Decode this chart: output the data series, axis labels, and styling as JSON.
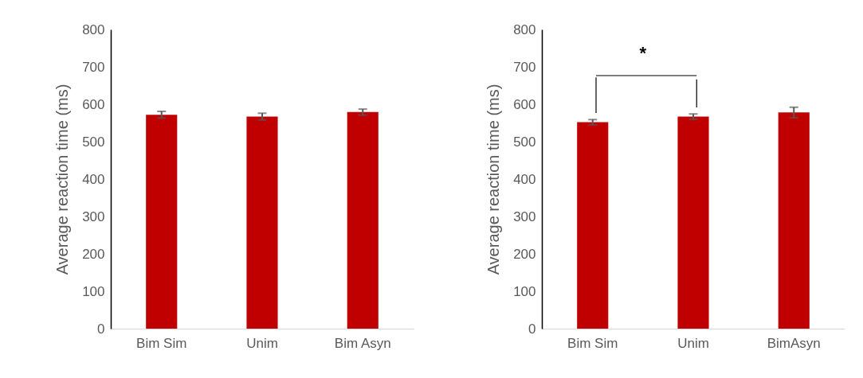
{
  "chart_data": [
    {
      "type": "bar",
      "categories": [
        "Bim Sim",
        "Unim",
        "Bim Asyn"
      ],
      "values": [
        572,
        567,
        579
      ],
      "errors": [
        9,
        9,
        8
      ],
      "color": "#c00000",
      "ylabel": "Average reaction time (ms)",
      "ylim": [
        0,
        800
      ],
      "yticks": [
        0,
        100,
        200,
        300,
        400,
        500,
        600,
        700,
        800
      ],
      "grid": false
    },
    {
      "type": "bar",
      "categories": [
        "Bim Sim",
        "Unim",
        "BimAsyn"
      ],
      "values": [
        552,
        567,
        578
      ],
      "errors": [
        7,
        7,
        14
      ],
      "color": "#c00000",
      "ylabel": "Average reaction time (ms)",
      "ylim": [
        0,
        800
      ],
      "yticks": [
        0,
        100,
        200,
        300,
        400,
        500,
        600,
        700,
        800
      ],
      "grid": false,
      "annotations": [
        "*"
      ]
    }
  ]
}
